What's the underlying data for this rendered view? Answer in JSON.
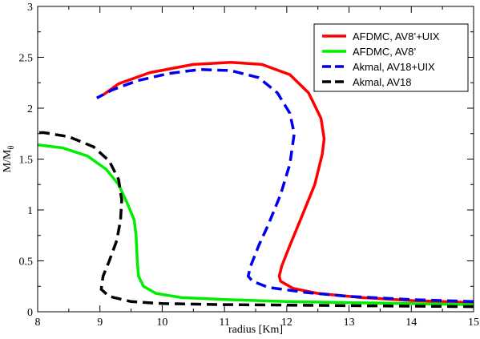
{
  "chart_data": {
    "type": "line",
    "xlabel": "radius [Km]",
    "ylabel_main": "M/M",
    "ylabel_sub": "θ",
    "xlim": [
      8,
      15
    ],
    "ylim": [
      0,
      3
    ],
    "xticks": [
      "8",
      "9",
      "10",
      "11",
      "12",
      "13",
      "14",
      "15"
    ],
    "yticks": [
      "0",
      "0.5",
      "1",
      "1.5",
      "2",
      "2.5",
      "3"
    ],
    "grid": false,
    "legend_position": "top-right",
    "series": [
      {
        "name": "AFDMC, AV8’+UIX",
        "color": "#ff0000",
        "dash": "solid",
        "points": [
          [
            15.0,
            0.09
          ],
          [
            14.0,
            0.11
          ],
          [
            13.2,
            0.14
          ],
          [
            12.5,
            0.18
          ],
          [
            12.1,
            0.23
          ],
          [
            11.9,
            0.3
          ],
          [
            11.88,
            0.35
          ],
          [
            11.92,
            0.45
          ],
          [
            12.05,
            0.65
          ],
          [
            12.25,
            0.95
          ],
          [
            12.45,
            1.25
          ],
          [
            12.57,
            1.55
          ],
          [
            12.6,
            1.7
          ],
          [
            12.55,
            1.9
          ],
          [
            12.35,
            2.15
          ],
          [
            12.05,
            2.33
          ],
          [
            11.6,
            2.43
          ],
          [
            11.1,
            2.45
          ],
          [
            10.5,
            2.43
          ],
          [
            9.8,
            2.35
          ],
          [
            9.3,
            2.24
          ],
          [
            9.05,
            2.13
          ]
        ]
      },
      {
        "name": "AFDMC, AV8’",
        "color": "#00ee00",
        "dash": "solid",
        "points": [
          [
            15.0,
            0.07
          ],
          [
            14.0,
            0.08
          ],
          [
            13.0,
            0.09
          ],
          [
            12.0,
            0.1
          ],
          [
            11.0,
            0.12
          ],
          [
            10.3,
            0.14
          ],
          [
            9.9,
            0.18
          ],
          [
            9.7,
            0.25
          ],
          [
            9.62,
            0.35
          ],
          [
            9.6,
            0.5
          ],
          [
            9.58,
            0.75
          ],
          [
            9.55,
            0.9
          ],
          [
            9.45,
            1.05
          ],
          [
            9.3,
            1.25
          ],
          [
            9.1,
            1.4
          ],
          [
            8.8,
            1.53
          ],
          [
            8.4,
            1.61
          ],
          [
            8.0,
            1.64
          ]
        ]
      },
      {
        "name": "Akmal, AV18+UIX",
        "color": "#0000ee",
        "dash": "dashed",
        "points": [
          [
            15.0,
            0.1
          ],
          [
            14.0,
            0.12
          ],
          [
            13.0,
            0.15
          ],
          [
            12.3,
            0.19
          ],
          [
            11.7,
            0.24
          ],
          [
            11.45,
            0.3
          ],
          [
            11.38,
            0.35
          ],
          [
            11.42,
            0.45
          ],
          [
            11.55,
            0.65
          ],
          [
            11.7,
            0.85
          ],
          [
            11.9,
            1.15
          ],
          [
            12.05,
            1.45
          ],
          [
            12.12,
            1.75
          ],
          [
            12.05,
            1.95
          ],
          [
            11.85,
            2.15
          ],
          [
            11.55,
            2.3
          ],
          [
            11.1,
            2.37
          ],
          [
            10.6,
            2.38
          ],
          [
            10.1,
            2.34
          ],
          [
            9.6,
            2.27
          ],
          [
            9.2,
            2.18
          ],
          [
            8.95,
            2.1
          ]
        ]
      },
      {
        "name": "Akmal, AV18",
        "color": "#000000",
        "dash": "dashed",
        "points": [
          [
            15.0,
            0.05
          ],
          [
            14.0,
            0.055
          ],
          [
            13.0,
            0.06
          ],
          [
            12.0,
            0.065
          ],
          [
            11.0,
            0.07
          ],
          [
            10.0,
            0.08
          ],
          [
            9.5,
            0.1
          ],
          [
            9.15,
            0.15
          ],
          [
            9.02,
            0.22
          ],
          [
            9.05,
            0.35
          ],
          [
            9.15,
            0.5
          ],
          [
            9.27,
            0.7
          ],
          [
            9.33,
            0.9
          ],
          [
            9.35,
            1.1
          ],
          [
            9.3,
            1.3
          ],
          [
            9.15,
            1.48
          ],
          [
            8.9,
            1.62
          ],
          [
            8.5,
            1.72
          ],
          [
            8.1,
            1.76
          ],
          [
            8.0,
            1.76
          ]
        ]
      }
    ]
  }
}
